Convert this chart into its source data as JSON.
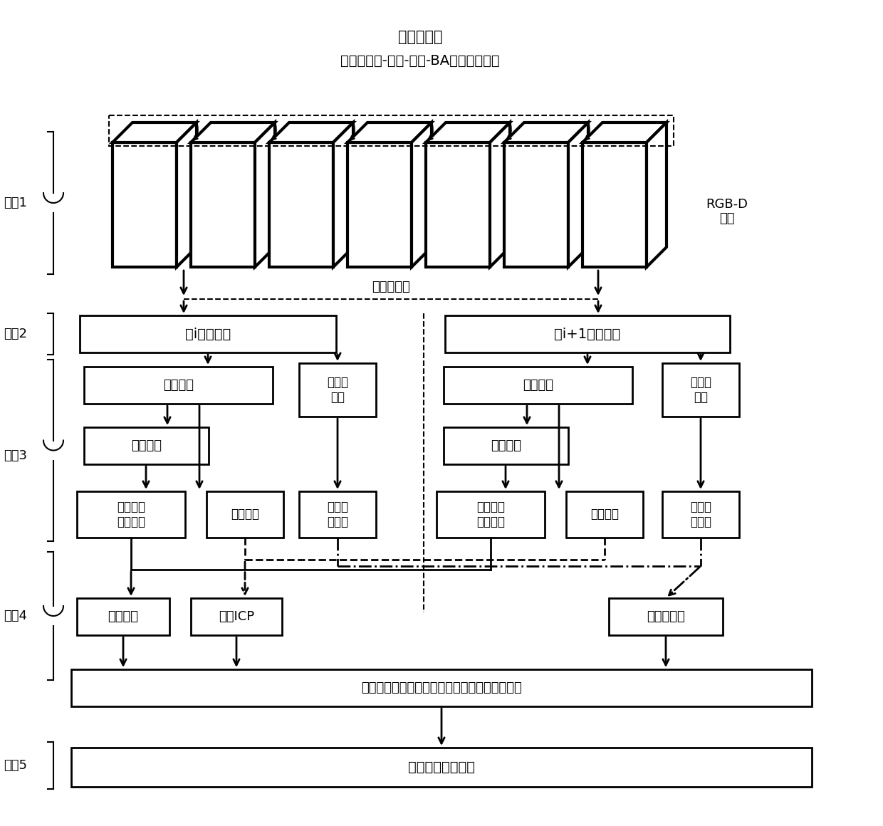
{
  "title_line1": "视觉里程计",
  "title_line2": "特征点提取-匹配-跟踪-BA求解相机运动",
  "rgb_d_label": "RGB-D\n图像",
  "extract_keyframe_label": "提取关键帧",
  "step_labels": [
    "步骤1",
    "步骤2",
    "步骤3",
    "步骤4",
    "步骤5"
  ],
  "keyframe_i": "第i帧关键帧",
  "keyframe_i1": "第i+1帧关键帧",
  "instance_seg_left": "实例分割",
  "instance_seg_right": "实例分割",
  "feat_extract_kp_left": "特征点\n提取",
  "feat_extract_kp_right": "特征点\n提取",
  "feat_extract_left": "特征提取",
  "feat_extract_right": "特征提取",
  "instance_feat_vec_left": "实例特征\n描述向量",
  "instance_feat_vec_right": "实例特征\n描述向量",
  "instance_cloud_left": "实例点云",
  "instance_cloud_right": "实例点云",
  "feat_desc_left": "特征点\n描述子",
  "feat_desc_right": "特征点\n描述子",
  "instance_match": "实例匹配",
  "cloud_icp": "点云ICP",
  "feat_match": "特征点匹配",
  "fusion_opt": "融合特征点匹配和实例匹配进行局部非线性优化",
  "build_map": "构建三维语义地图"
}
